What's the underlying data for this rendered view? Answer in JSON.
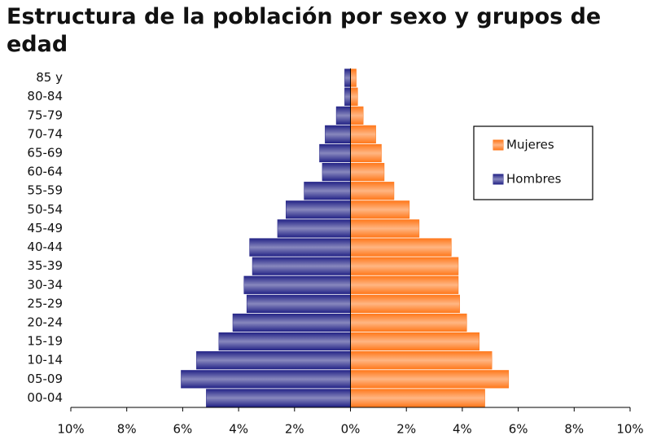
{
  "chart_data": {
    "type": "pyramid",
    "title": "Estructura de la población por sexo y grupos de edad",
    "categories": [
      "00-04",
      "05-09",
      "10-14",
      "15-19",
      "20-24",
      "25-29",
      "30-34",
      "35-39",
      "40-44",
      "45-49",
      "50-54",
      "55-59",
      "60-64",
      "65-69",
      "70-74",
      "75-79",
      "80-84",
      "85 y"
    ],
    "series": [
      {
        "name": "Mujeres",
        "color": "#ff7a1e",
        "values": [
          4.8,
          5.65,
          5.05,
          4.6,
          4.15,
          3.9,
          3.85,
          3.85,
          3.6,
          2.45,
          2.1,
          1.55,
          1.2,
          1.1,
          0.9,
          0.45,
          0.25,
          0.2
        ]
      },
      {
        "name": "Hombres",
        "color": "#262688",
        "values": [
          -5.15,
          -6.05,
          -5.5,
          -4.7,
          -4.2,
          -3.7,
          -3.8,
          -3.5,
          -3.6,
          -2.6,
          -2.3,
          -1.65,
          -1.0,
          -1.1,
          -0.9,
          -0.5,
          -0.2,
          -0.2
        ]
      }
    ],
    "xlim": [
      -10,
      10
    ],
    "xticks": [
      {
        "value": -10,
        "label": "10%"
      },
      {
        "value": -8,
        "label": "8%"
      },
      {
        "value": -6,
        "label": "6%"
      },
      {
        "value": -4,
        "label": "4%"
      },
      {
        "value": -2,
        "label": "2%"
      },
      {
        "value": 0,
        "label": "0%"
      },
      {
        "value": 2,
        "label": "2%"
      },
      {
        "value": 4,
        "label": "4%"
      },
      {
        "value": 6,
        "label": "6%"
      },
      {
        "value": 8,
        "label": "8%"
      },
      {
        "value": 10,
        "label": "10%"
      }
    ],
    "legend": "right"
  }
}
